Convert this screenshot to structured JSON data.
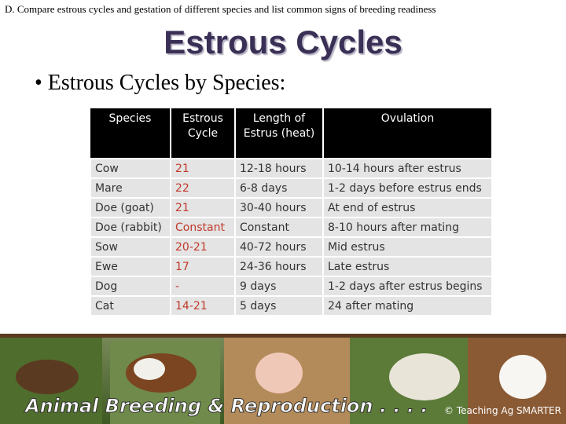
{
  "header": {
    "note": "D.  Compare estrous cycles and gestation of different species and list common signs of breeding readiness",
    "title": "Estrous Cycles",
    "bullet": "• Estrous Cycles by Species:"
  },
  "table": {
    "headers": [
      "Species",
      "Estrous Cycle",
      "Length of Estrus (heat)",
      "Ovulation"
    ],
    "rows": [
      [
        "Cow",
        "21",
        "12-18 hours",
        "10-14 hours after estrus"
      ],
      [
        "Mare",
        "22",
        "6-8 days",
        "1-2 days before estrus ends"
      ],
      [
        "Doe (goat)",
        "21",
        "30-40 hours",
        "At end of estrus"
      ],
      [
        "Doe (rabbit)",
        "Constant",
        "Constant",
        "8-10 hours after mating"
      ],
      [
        "Sow",
        "20-21",
        "40-72 hours",
        "Mid estrus"
      ],
      [
        "Ewe",
        "17",
        "24-36 hours",
        "Late estrus"
      ],
      [
        "Dog",
        "-",
        "9 days",
        "1-2 days after estrus begins"
      ],
      [
        "Cat",
        "14-21",
        "5 days",
        "24 after mating"
      ]
    ]
  },
  "banner": {
    "title": "Animal Breeding & Reproduction . . . .",
    "credit": "© Teaching Ag SMARTER"
  }
}
